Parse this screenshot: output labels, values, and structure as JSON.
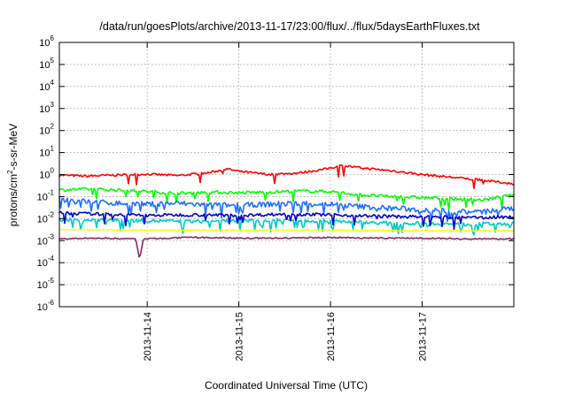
{
  "chart_data": {
    "type": "line",
    "title": "/data/run/goesPlots/archive/2013-11-17/23:00/flux/../flux/5daysEarthFluxes.txt",
    "xlabel": "Coordinated Universal Time (UTC)",
    "ylabel": {
      "base": "protons/cm",
      "sup": "2",
      "rest": "-s-sr-MeV"
    },
    "yscale": "log",
    "ylim": [
      1e-06,
      1000000.0
    ],
    "y_ticks": [
      {
        "value": 1e-06,
        "base": "10",
        "exp": "-6"
      },
      {
        "value": 1e-05,
        "base": "10",
        "exp": "-5"
      },
      {
        "value": 0.0001,
        "base": "10",
        "exp": "-4"
      },
      {
        "value": 0.001,
        "base": "10",
        "exp": "-3"
      },
      {
        "value": 0.01,
        "base": "10",
        "exp": "-2"
      },
      {
        "value": 0.1,
        "base": "10",
        "exp": "-1"
      },
      {
        "value": 1,
        "base": "10",
        "exp": "0"
      },
      {
        "value": 10,
        "base": "10",
        "exp": "1"
      },
      {
        "value": 100,
        "base": "10",
        "exp": "2"
      },
      {
        "value": 1000,
        "base": "10",
        "exp": "3"
      },
      {
        "value": 10000,
        "base": "10",
        "exp": "4"
      },
      {
        "value": 100000,
        "base": "10",
        "exp": "5"
      },
      {
        "value": 1000000,
        "base": "10",
        "exp": "6"
      }
    ],
    "xlim": [
      "2013-11-13T01:00",
      "2013-11-18T00:00"
    ],
    "x_ticks": [
      {
        "value": "2013-11-14T00:00",
        "label": "2013-11-14"
      },
      {
        "value": "2013-11-15T00:00",
        "label": "2013-11-15"
      },
      {
        "value": "2013-11-16T00:00",
        "label": "2013-11-16"
      },
      {
        "value": "2013-11-17T00:00",
        "label": "2013-11-17"
      }
    ],
    "grid": true,
    "series": [
      {
        "color": "#ff0000",
        "points": [
          [
            "2013-11-13T01:00",
            0.95
          ],
          [
            "2013-11-13T08:00",
            0.85
          ],
          [
            "2013-11-13T16:00",
            0.95
          ],
          [
            "2013-11-14T00:00",
            1.05
          ],
          [
            "2013-11-14T08:00",
            0.9
          ],
          [
            "2013-11-14T16:00",
            1.2
          ],
          [
            "2013-11-14T21:00",
            1.8
          ],
          [
            "2013-11-15T00:00",
            1.4
          ],
          [
            "2013-11-15T08:00",
            1.0
          ],
          [
            "2013-11-15T16:00",
            1.2
          ],
          [
            "2013-11-15T22:00",
            1.7
          ],
          [
            "2013-11-16T03:00",
            2.6
          ],
          [
            "2013-11-16T08:00",
            2.0
          ],
          [
            "2013-11-16T16:00",
            1.5
          ],
          [
            "2013-11-17T00:00",
            1.0
          ],
          [
            "2013-11-17T08:00",
            0.75
          ],
          [
            "2013-11-17T16:00",
            0.55
          ],
          [
            "2013-11-18T00:00",
            0.38
          ]
        ]
      },
      {
        "color": "#00ff00",
        "points": [
          [
            "2013-11-13T01:00",
            0.2
          ],
          [
            "2013-11-13T08:00",
            0.22
          ],
          [
            "2013-11-13T16:00",
            0.2
          ],
          [
            "2013-11-14T00:00",
            0.17
          ],
          [
            "2013-11-14T08:00",
            0.14
          ],
          [
            "2013-11-14T16:00",
            0.16
          ],
          [
            "2013-11-15T00:00",
            0.15
          ],
          [
            "2013-11-15T08:00",
            0.16
          ],
          [
            "2013-11-15T16:00",
            0.18
          ],
          [
            "2013-11-16T00:00",
            0.17
          ],
          [
            "2013-11-16T08:00",
            0.12
          ],
          [
            "2013-11-16T16:00",
            0.1
          ],
          [
            "2013-11-17T00:00",
            0.09
          ],
          [
            "2013-11-17T08:00",
            0.08
          ],
          [
            "2013-11-17T16:00",
            0.07
          ],
          [
            "2013-11-18T00:00",
            0.12
          ]
        ]
      },
      {
        "color": "#1e6eff",
        "points": [
          [
            "2013-11-13T01:00",
            0.075
          ],
          [
            "2013-11-13T08:00",
            0.06
          ],
          [
            "2013-11-13T16:00",
            0.05
          ],
          [
            "2013-11-14T00:00",
            0.045
          ],
          [
            "2013-11-14T08:00",
            0.05
          ],
          [
            "2013-11-14T16:00",
            0.042
          ],
          [
            "2013-11-15T00:00",
            0.04
          ],
          [
            "2013-11-15T08:00",
            0.045
          ],
          [
            "2013-11-15T16:00",
            0.05
          ],
          [
            "2013-11-16T00:00",
            0.045
          ],
          [
            "2013-11-16T08:00",
            0.035
          ],
          [
            "2013-11-16T16:00",
            0.03
          ],
          [
            "2013-11-17T00:00",
            0.025
          ],
          [
            "2013-11-17T08:00",
            0.022
          ],
          [
            "2013-11-17T16:00",
            0.02
          ],
          [
            "2013-11-18T00:00",
            0.03
          ]
        ]
      },
      {
        "color": "#00c8c8",
        "points": [
          [
            "2013-11-13T01:00",
            0.009
          ],
          [
            "2013-11-13T12:00",
            0.0085
          ],
          [
            "2013-11-14T00:00",
            0.008
          ],
          [
            "2013-11-14T12:00",
            0.0075
          ],
          [
            "2013-11-15T00:00",
            0.008
          ],
          [
            "2013-11-15T12:00",
            0.0085
          ],
          [
            "2013-11-16T00:00",
            0.008
          ],
          [
            "2013-11-16T12:00",
            0.0065
          ],
          [
            "2013-11-17T00:00",
            0.006
          ],
          [
            "2013-11-17T12:00",
            0.0055
          ],
          [
            "2013-11-18T00:00",
            0.006
          ]
        ]
      },
      {
        "color": "#0000c8",
        "points": [
          [
            "2013-11-13T01:00",
            0.018
          ],
          [
            "2013-11-13T12:00",
            0.016
          ],
          [
            "2013-11-14T00:00",
            0.014
          ],
          [
            "2013-11-14T12:00",
            0.015
          ],
          [
            "2013-11-15T00:00",
            0.014
          ],
          [
            "2013-11-15T12:00",
            0.016
          ],
          [
            "2013-11-16T00:00",
            0.015
          ],
          [
            "2013-11-16T12:00",
            0.013
          ],
          [
            "2013-11-17T00:00",
            0.012
          ],
          [
            "2013-11-17T12:00",
            0.011
          ],
          [
            "2013-11-18T00:00",
            0.012
          ]
        ]
      },
      {
        "color": "#ffff00",
        "points": [
          [
            "2013-11-13T01:00",
            0.0032
          ],
          [
            "2013-11-14T00:00",
            0.003
          ],
          [
            "2013-11-15T00:00",
            0.003
          ],
          [
            "2013-11-16T00:00",
            0.003
          ],
          [
            "2013-11-17T00:00",
            0.0028
          ],
          [
            "2013-11-18T00:00",
            0.0028
          ]
        ]
      },
      {
        "color": "#8c2864",
        "points": [
          [
            "2013-11-13T01:00",
            0.0012
          ],
          [
            "2013-11-13T12:00",
            0.0013
          ],
          [
            "2013-11-13T21:00",
            0.0012
          ],
          [
            "2013-11-13T22:00",
            0.00014
          ],
          [
            "2013-11-13T23:00",
            0.0012
          ],
          [
            "2013-11-14T12:00",
            0.0014
          ],
          [
            "2013-11-15T00:00",
            0.0013
          ],
          [
            "2013-11-15T12:00",
            0.0013
          ],
          [
            "2013-11-16T00:00",
            0.0014
          ],
          [
            "2013-11-16T12:00",
            0.0013
          ],
          [
            "2013-11-17T00:00",
            0.0013
          ],
          [
            "2013-11-17T12:00",
            0.0012
          ],
          [
            "2013-11-18T00:00",
            0.0012
          ]
        ]
      }
    ]
  }
}
